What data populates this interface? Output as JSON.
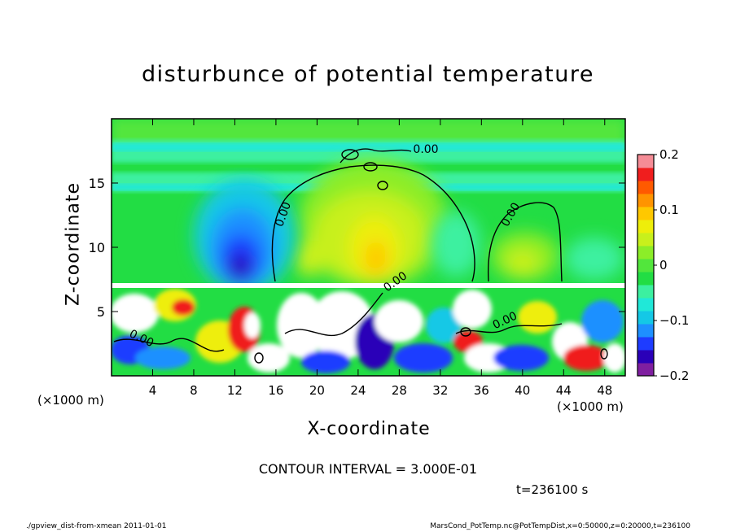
{
  "chart_data": {
    "type": "heatmap",
    "title": "disturbunce of potential temperature",
    "xlabel": "X-coordinate",
    "ylabel": "Z-coordinate",
    "x_unit": "(×1000 m)",
    "xlim": [
      0,
      50
    ],
    "ylim": [
      0,
      20
    ],
    "x_ticks": [
      4,
      8,
      12,
      16,
      20,
      24,
      28,
      32,
      36,
      40,
      44,
      48
    ],
    "y_ticks": [
      5,
      10,
      15
    ],
    "colorbar": {
      "range": [
        -0.2,
        0.2
      ],
      "ticks": [
        0.2,
        0.1,
        0,
        -0.1,
        -0.2
      ],
      "tick_labels": [
        "0.2",
        "0.1",
        "0",
        "−0.1",
        "−0.2"
      ],
      "colors": [
        "#7f1fa0",
        "#2a00b8",
        "#1e3cff",
        "#1e90ff",
        "#14c8e6",
        "#20e8d8",
        "#3cf0a0",
        "#22dd44",
        "#52e63c",
        "#8ced28",
        "#c8f01c",
        "#eeee0a",
        "#ffc800",
        "#ff9400",
        "#ff5a00",
        "#f01e1e",
        "#f58c96"
      ]
    },
    "field_features": [
      {
        "kind": "negative anomaly",
        "x": 12.5,
        "z": 9.5,
        "value": -0.18
      },
      {
        "kind": "positive anomaly",
        "x": 26,
        "z": 10,
        "value": 0.1
      },
      {
        "kind": "positive anomaly",
        "x": 40,
        "z": 9,
        "value": 0.04
      },
      {
        "kind": "mixed layer",
        "z_top": 7,
        "value_range": [
          -0.2,
          0.2
        ]
      }
    ],
    "contour_labels": [
      "0.00",
      "0.00",
      "0.00",
      "0.00",
      "0.00",
      "0.00"
    ],
    "contour_interval": "CONTOUR INTERVAL = 3.000E-01",
    "time": "t=236100 s"
  },
  "footer": {
    "left": "./gpview_dist-from-xmean  2011-01-01",
    "right": "MarsCond_PotTemp.nc@PotTempDist,x=0:50000,z=0:20000,t=236100"
  }
}
